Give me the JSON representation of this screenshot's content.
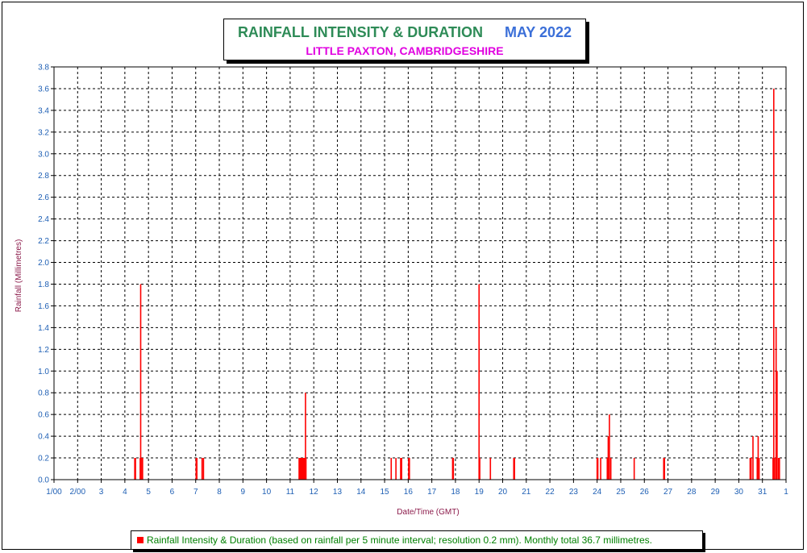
{
  "chart_data": {
    "type": "bar",
    "title": "RAINFALL INTENSITY & DURATION",
    "title_date": "MAY 2022",
    "subtitle": "LITTLE PAXTON, CAMBRIDGESHIRE",
    "xlabel": "Date/Time (GMT)",
    "ylabel": "Rainfall (Millimetres)",
    "xlim": [
      1,
      32
    ],
    "ylim": [
      0,
      3.8
    ],
    "y_ticks": [
      "0.0",
      "0.2",
      "0.4",
      "0.6",
      "0.8",
      "1.0",
      "1.2",
      "1.4",
      "1.6",
      "1.8",
      "2.0",
      "2.2",
      "2.4",
      "2.6",
      "2.8",
      "3.0",
      "3.2",
      "3.4",
      "3.6",
      "3.8"
    ],
    "x_ticks": [
      "1/00",
      "2/00",
      "3",
      "4",
      "5",
      "6",
      "7",
      "8",
      "9",
      "10",
      "11",
      "12",
      "13",
      "14",
      "15",
      "16",
      "17",
      "18",
      "19",
      "20",
      "21",
      "22",
      "23",
      "24",
      "25",
      "26",
      "27",
      "28",
      "29",
      "30",
      "31",
      "1"
    ],
    "grid": true,
    "legend": {
      "position": "bottom",
      "label": "Rainfall Intensity & Duration (based on rainfall per 5 minute interval; resolution 0.2 mm). Monthly total 36.7 millimetres."
    },
    "colors": {
      "bars": "#ff0000",
      "axis_text": "#1e5fb4",
      "axis_label": "#8b1a4a",
      "grid": "#000000"
    },
    "series": [
      {
        "values": [
          {
            "x": 4.42,
            "y": 0.2
          },
          {
            "x": 4.45,
            "y": 0.2
          },
          {
            "x": 4.65,
            "y": 0.2
          },
          {
            "x": 4.67,
            "y": 1.8
          },
          {
            "x": 4.72,
            "y": 0.2
          },
          {
            "x": 4.75,
            "y": 0.2
          },
          {
            "x": 7.02,
            "y": 0.2
          },
          {
            "x": 7.05,
            "y": 0.2
          },
          {
            "x": 7.27,
            "y": 0.2
          },
          {
            "x": 7.33,
            "y": 0.2
          },
          {
            "x": 11.38,
            "y": 0.2
          },
          {
            "x": 11.41,
            "y": 0.2
          },
          {
            "x": 11.44,
            "y": 0.2
          },
          {
            "x": 11.47,
            "y": 0.2
          },
          {
            "x": 11.5,
            "y": 0.2
          },
          {
            "x": 11.53,
            "y": 0.2
          },
          {
            "x": 11.56,
            "y": 0.2
          },
          {
            "x": 11.59,
            "y": 0.2
          },
          {
            "x": 11.62,
            "y": 0.2
          },
          {
            "x": 11.65,
            "y": 0.8
          },
          {
            "x": 11.67,
            "y": 0.2
          },
          {
            "x": 15.28,
            "y": 0.2
          },
          {
            "x": 15.48,
            "y": 0.2
          },
          {
            "x": 15.68,
            "y": 0.2
          },
          {
            "x": 15.72,
            "y": 0.2
          },
          {
            "x": 16.02,
            "y": 0.2
          },
          {
            "x": 16.05,
            "y": 0.2
          },
          {
            "x": 17.88,
            "y": 0.2
          },
          {
            "x": 17.91,
            "y": 0.2
          },
          {
            "x": 19.0,
            "y": 1.8
          },
          {
            "x": 19.03,
            "y": 0.2
          },
          {
            "x": 19.48,
            "y": 0.2
          },
          {
            "x": 20.47,
            "y": 0.2
          },
          {
            "x": 20.5,
            "y": 0.2
          },
          {
            "x": 24.0,
            "y": 0.2
          },
          {
            "x": 24.03,
            "y": 0.2
          },
          {
            "x": 24.15,
            "y": 0.2
          },
          {
            "x": 24.43,
            "y": 0.2
          },
          {
            "x": 24.47,
            "y": 0.4
          },
          {
            "x": 24.52,
            "y": 0.6
          },
          {
            "x": 24.58,
            "y": 0.2
          },
          {
            "x": 25.57,
            "y": 0.2
          },
          {
            "x": 26.82,
            "y": 0.2
          },
          {
            "x": 26.85,
            "y": 0.2
          },
          {
            "x": 30.48,
            "y": 0.2
          },
          {
            "x": 30.52,
            "y": 0.2
          },
          {
            "x": 30.6,
            "y": 0.4
          },
          {
            "x": 30.78,
            "y": 0.2
          },
          {
            "x": 30.82,
            "y": 0.4
          },
          {
            "x": 30.86,
            "y": 0.2
          },
          {
            "x": 31.45,
            "y": 0.2
          },
          {
            "x": 31.48,
            "y": 3.6
          },
          {
            "x": 31.52,
            "y": 0.2
          },
          {
            "x": 31.58,
            "y": 1.4
          },
          {
            "x": 31.62,
            "y": 1.0
          },
          {
            "x": 31.68,
            "y": 0.2
          },
          {
            "x": 31.72,
            "y": 0.2
          }
        ]
      }
    ]
  }
}
